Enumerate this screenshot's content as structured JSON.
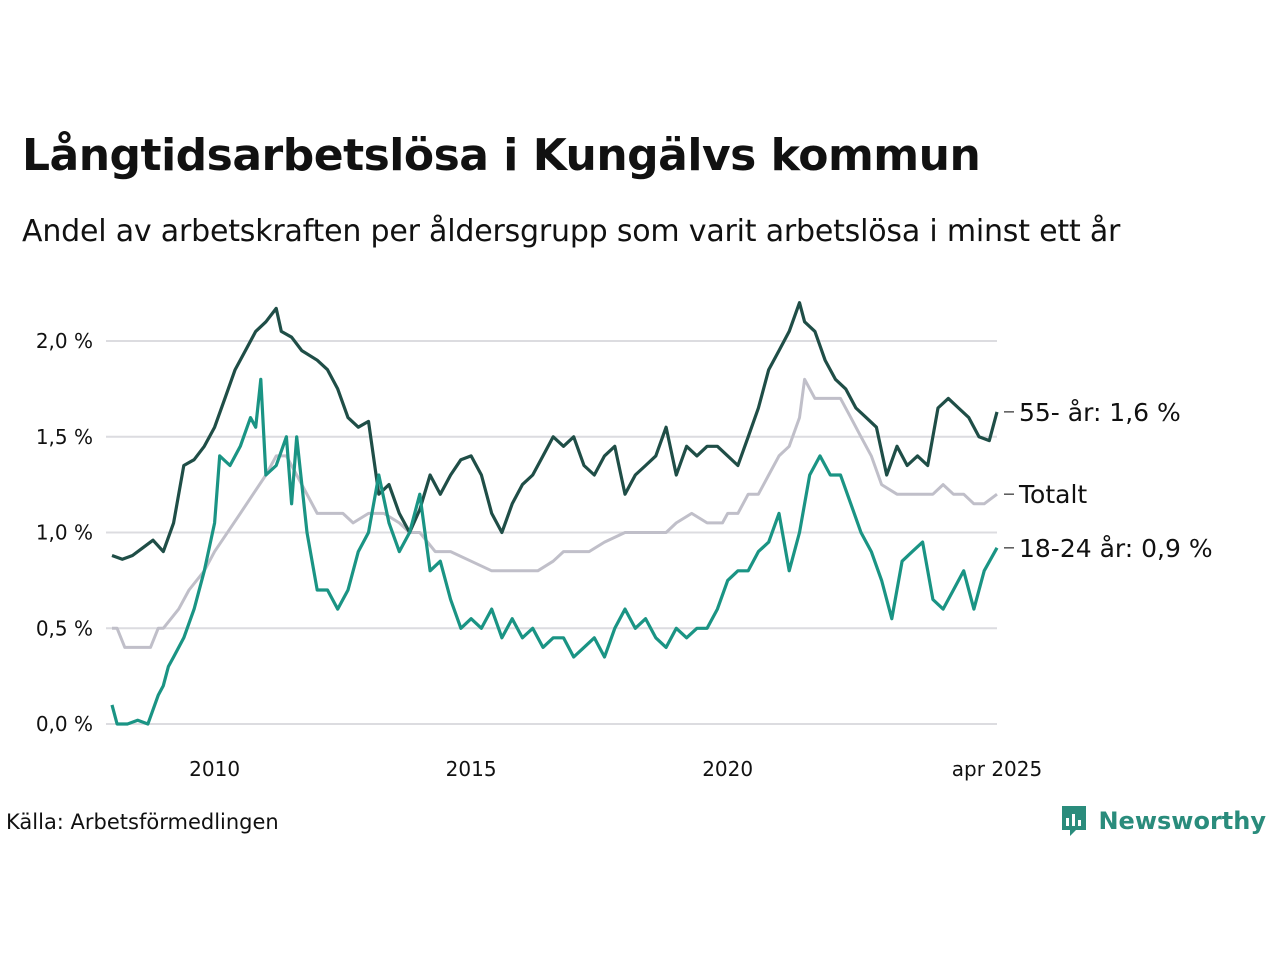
{
  "title": "Långtidsarbetslösa i Kungälvs kommun",
  "subtitle": "Andel av arbetskraften per åldersgrupp som varit arbetslösa i minst ett år",
  "source": "Källa: Arbetsförmedlingen",
  "brand": "Newsworthy",
  "colors": {
    "older": "#1f4e47",
    "total": "#c0bfc9",
    "young": "#1a9484",
    "grid": "#dcdce0",
    "brand": "#2a8c7c"
  },
  "chart_data": {
    "type": "line",
    "y_ticks": [
      "0,0 %",
      "0,5 %",
      "1,0 %",
      "1,5 %",
      "2,0 %"
    ],
    "y_tick_values": [
      0,
      0.5,
      1.0,
      1.5,
      2.0
    ],
    "x_ticks": [
      "2010",
      "2015",
      "2020",
      "apr 2025"
    ],
    "x_tick_values": [
      2010.0,
      2015.0,
      2020.0,
      2025.25
    ],
    "xlim": [
      2008.0,
      2025.25
    ],
    "ylim": [
      0,
      2.2
    ],
    "grid": true,
    "series": [
      {
        "key": "total",
        "end_label": "Totalt",
        "x": [
          2008.0,
          2008.1,
          2008.25,
          2008.5,
          2008.75,
          2008.9,
          2009.0,
          2009.3,
          2009.5,
          2009.8,
          2010.0,
          2010.5,
          2011.0,
          2011.2,
          2011.4,
          2011.6,
          2012.0,
          2012.3,
          2012.5,
          2012.7,
          2013.0,
          2013.3,
          2013.6,
          2013.8,
          2013.9,
          2014.0,
          2014.3,
          2014.6,
          2015.0,
          2015.4,
          2015.7,
          2016.0,
          2016.3,
          2016.6,
          2016.8,
          2017.0,
          2017.3,
          2017.6,
          2018.0,
          2018.5,
          2018.8,
          2019.0,
          2019.3,
          2019.6,
          2019.9,
          2020.0,
          2020.2,
          2020.4,
          2020.6,
          2020.8,
          2021.0,
          2021.2,
          2021.4,
          2021.5,
          2021.7,
          2022.0,
          2022.2,
          2022.4,
          2022.6,
          2022.8,
          2023.0,
          2023.3,
          2023.6,
          2023.9,
          2024.0,
          2024.2,
          2024.4,
          2024.6,
          2024.8,
          2025.0,
          2025.25
        ],
        "y": [
          0.5,
          0.5,
          0.4,
          0.4,
          0.4,
          0.5,
          0.5,
          0.6,
          0.7,
          0.8,
          0.9,
          1.1,
          1.3,
          1.4,
          1.4,
          1.3,
          1.1,
          1.1,
          1.1,
          1.05,
          1.1,
          1.1,
          1.05,
          1.0,
          1.0,
          1.0,
          0.9,
          0.9,
          0.85,
          0.8,
          0.8,
          0.8,
          0.8,
          0.85,
          0.9,
          0.9,
          0.9,
          0.95,
          1.0,
          1.0,
          1.0,
          1.05,
          1.1,
          1.05,
          1.05,
          1.1,
          1.1,
          1.2,
          1.2,
          1.3,
          1.4,
          1.45,
          1.6,
          1.8,
          1.7,
          1.7,
          1.7,
          1.6,
          1.5,
          1.4,
          1.25,
          1.2,
          1.2,
          1.2,
          1.2,
          1.25,
          1.2,
          1.2,
          1.15,
          1.15,
          1.2
        ]
      },
      {
        "key": "older",
        "end_label": "55- år: 1,6 %",
        "x": [
          2008.0,
          2008.2,
          2008.4,
          2008.6,
          2008.8,
          2009.0,
          2009.2,
          2009.4,
          2009.6,
          2009.8,
          2010.0,
          2010.2,
          2010.4,
          2010.6,
          2010.8,
          2011.0,
          2011.2,
          2011.3,
          2011.5,
          2011.7,
          2012.0,
          2012.2,
          2012.4,
          2012.6,
          2012.8,
          2013.0,
          2013.2,
          2013.4,
          2013.6,
          2013.8,
          2014.0,
          2014.2,
          2014.4,
          2014.6,
          2014.8,
          2015.0,
          2015.2,
          2015.4,
          2015.6,
          2015.8,
          2016.0,
          2016.2,
          2016.4,
          2016.6,
          2016.8,
          2017.0,
          2017.2,
          2017.4,
          2017.6,
          2017.8,
          2018.0,
          2018.2,
          2018.4,
          2018.6,
          2018.8,
          2019.0,
          2019.2,
          2019.4,
          2019.6,
          2019.8,
          2020.0,
          2020.2,
          2020.4,
          2020.6,
          2020.8,
          2021.0,
          2021.2,
          2021.4,
          2021.5,
          2021.7,
          2021.9,
          2022.1,
          2022.3,
          2022.5,
          2022.7,
          2022.9,
          2023.1,
          2023.3,
          2023.5,
          2023.7,
          2023.9,
          2024.1,
          2024.3,
          2024.5,
          2024.7,
          2024.9,
          2025.1,
          2025.25
        ],
        "y": [
          0.88,
          0.86,
          0.88,
          0.92,
          0.96,
          0.9,
          1.05,
          1.35,
          1.38,
          1.45,
          1.55,
          1.7,
          1.85,
          1.95,
          2.05,
          2.1,
          2.17,
          2.05,
          2.02,
          1.95,
          1.9,
          1.85,
          1.75,
          1.6,
          1.55,
          1.58,
          1.2,
          1.25,
          1.1,
          1.0,
          1.12,
          1.3,
          1.2,
          1.3,
          1.38,
          1.4,
          1.3,
          1.1,
          1.0,
          1.15,
          1.25,
          1.3,
          1.4,
          1.5,
          1.45,
          1.5,
          1.35,
          1.3,
          1.4,
          1.45,
          1.2,
          1.3,
          1.35,
          1.4,
          1.55,
          1.3,
          1.45,
          1.4,
          1.45,
          1.45,
          1.4,
          1.35,
          1.5,
          1.65,
          1.85,
          1.95,
          2.05,
          2.2,
          2.1,
          2.05,
          1.9,
          1.8,
          1.75,
          1.65,
          1.6,
          1.55,
          1.3,
          1.45,
          1.35,
          1.4,
          1.35,
          1.65,
          1.7,
          1.65,
          1.6,
          1.5,
          1.48,
          1.63
        ]
      },
      {
        "key": "young",
        "end_label": "18-24 år: 0,9 %",
        "x": [
          2008.0,
          2008.1,
          2008.3,
          2008.5,
          2008.7,
          2008.9,
          2009.0,
          2009.1,
          2009.2,
          2009.4,
          2009.6,
          2009.8,
          2010.0,
          2010.1,
          2010.3,
          2010.5,
          2010.7,
          2010.8,
          2010.9,
          2011.0,
          2011.2,
          2011.4,
          2011.5,
          2011.6,
          2011.8,
          2012.0,
          2012.2,
          2012.4,
          2012.6,
          2012.8,
          2013.0,
          2013.2,
          2013.4,
          2013.6,
          2013.8,
          2014.0,
          2014.2,
          2014.4,
          2014.6,
          2014.8,
          2015.0,
          2015.2,
          2015.4,
          2015.6,
          2015.8,
          2016.0,
          2016.2,
          2016.4,
          2016.6,
          2016.8,
          2017.0,
          2017.2,
          2017.4,
          2017.6,
          2017.8,
          2018.0,
          2018.2,
          2018.4,
          2018.6,
          2018.8,
          2019.0,
          2019.2,
          2019.4,
          2019.6,
          2019.8,
          2020.0,
          2020.2,
          2020.4,
          2020.6,
          2020.8,
          2021.0,
          2021.2,
          2021.4,
          2021.6,
          2021.8,
          2022.0,
          2022.2,
          2022.4,
          2022.6,
          2022.8,
          2023.0,
          2023.2,
          2023.4,
          2023.6,
          2023.8,
          2024.0,
          2024.2,
          2024.4,
          2024.6,
          2024.8,
          2025.0,
          2025.25
        ],
        "y": [
          0.1,
          0.0,
          0.0,
          0.02,
          0.0,
          0.15,
          0.2,
          0.3,
          0.35,
          0.45,
          0.6,
          0.8,
          1.05,
          1.4,
          1.35,
          1.45,
          1.6,
          1.55,
          1.8,
          1.3,
          1.35,
          1.5,
          1.15,
          1.5,
          1.0,
          0.7,
          0.7,
          0.6,
          0.7,
          0.9,
          1.0,
          1.3,
          1.05,
          0.9,
          1.0,
          1.2,
          0.8,
          0.85,
          0.65,
          0.5,
          0.55,
          0.5,
          0.6,
          0.45,
          0.55,
          0.45,
          0.5,
          0.4,
          0.45,
          0.45,
          0.35,
          0.4,
          0.45,
          0.35,
          0.5,
          0.6,
          0.5,
          0.55,
          0.45,
          0.4,
          0.5,
          0.45,
          0.5,
          0.5,
          0.6,
          0.75,
          0.8,
          0.8,
          0.9,
          0.95,
          1.1,
          0.8,
          1.0,
          1.3,
          1.4,
          1.3,
          1.3,
          1.15,
          1.0,
          0.9,
          0.75,
          0.55,
          0.85,
          0.9,
          0.95,
          0.65,
          0.6,
          0.7,
          0.8,
          0.6,
          0.8,
          0.92
        ]
      }
    ]
  }
}
